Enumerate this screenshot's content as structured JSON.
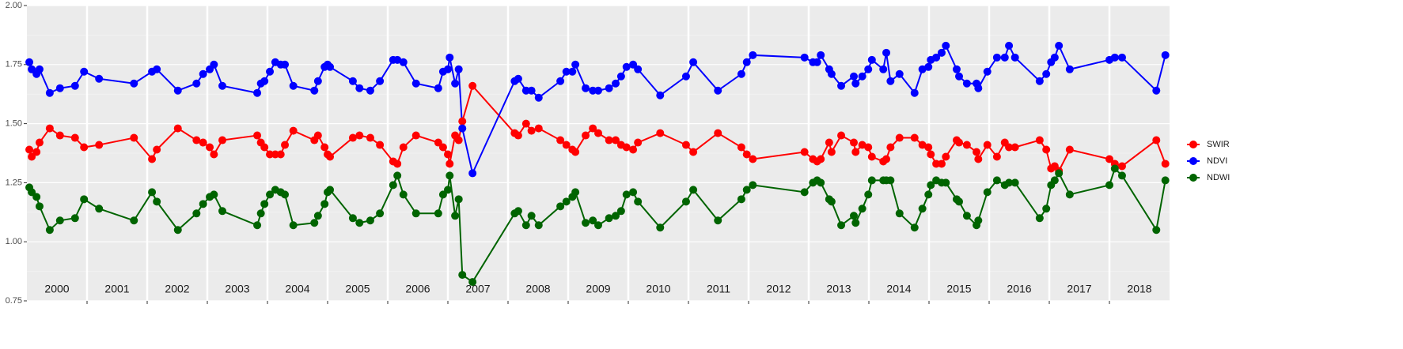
{
  "chart_data": {
    "type": "line",
    "x": [
      2000.04,
      2000.08,
      2000.16,
      2000.21,
      2000.38,
      2000.55,
      2000.8,
      2000.95,
      2001.2,
      2001.78,
      2002.08,
      2002.16,
      2002.51,
      2002.82,
      2002.93,
      2003.04,
      2003.11,
      2003.25,
      2003.83,
      2003.89,
      2003.95,
      2004.04,
      2004.13,
      2004.22,
      2004.29,
      2004.43,
      2004.78,
      2004.84,
      2004.95,
      2005.0,
      2005.04,
      2005.42,
      2005.53,
      2005.71,
      2005.87,
      2006.09,
      2006.16,
      2006.26,
      2006.47,
      2006.84,
      2006.92,
      2007.0,
      2007.03,
      2007.12,
      2007.18,
      2007.24,
      2007.41,
      2008.11,
      2008.17,
      2008.3,
      2008.39,
      2008.51,
      2008.87,
      2008.97,
      2009.07,
      2009.12,
      2009.29,
      2009.41,
      2009.5,
      2009.68,
      2009.79,
      2009.88,
      2009.97,
      2010.08,
      2010.16,
      2010.53,
      2010.96,
      2011.08,
      2011.49,
      2011.88,
      2011.97,
      2012.07,
      2012.93,
      2013.07,
      2013.14,
      2013.2,
      2013.34,
      2013.38,
      2013.54,
      2013.75,
      2013.78,
      2013.89,
      2013.99,
      2014.05,
      2014.24,
      2014.29,
      2014.36,
      2014.51,
      2014.76,
      2014.89,
      2014.99,
      2015.03,
      2015.12,
      2015.21,
      2015.28,
      2015.46,
      2015.5,
      2015.63,
      2015.79,
      2015.82,
      2015.97,
      2016.13,
      2016.26,
      2016.33,
      2016.43,
      2016.84,
      2016.95,
      2017.03,
      2017.09,
      2017.16,
      2017.34,
      2018.0,
      2018.09,
      2018.21,
      2018.78,
      2018.93
    ],
    "series": [
      {
        "name": "SWIR",
        "color": "#ff0000",
        "values": [
          1.39,
          1.36,
          1.38,
          1.42,
          1.48,
          1.45,
          1.44,
          1.4,
          1.41,
          1.44,
          1.35,
          1.39,
          1.48,
          1.43,
          1.42,
          1.4,
          1.37,
          1.43,
          1.45,
          1.42,
          1.4,
          1.37,
          1.37,
          1.37,
          1.41,
          1.47,
          1.43,
          1.45,
          1.4,
          1.37,
          1.36,
          1.44,
          1.45,
          1.44,
          1.41,
          1.34,
          1.33,
          1.4,
          1.45,
          1.42,
          1.4,
          1.37,
          1.33,
          1.45,
          1.43,
          1.51,
          1.66,
          1.46,
          1.45,
          1.5,
          1.47,
          1.48,
          1.43,
          1.41,
          1.39,
          1.38,
          1.45,
          1.48,
          1.46,
          1.43,
          1.43,
          1.41,
          1.4,
          1.39,
          1.42,
          1.46,
          1.41,
          1.38,
          1.46,
          1.4,
          1.37,
          1.35,
          1.38,
          1.35,
          1.34,
          1.35,
          1.42,
          1.38,
          1.45,
          1.42,
          1.38,
          1.41,
          1.4,
          1.36,
          1.34,
          1.35,
          1.4,
          1.44,
          1.44,
          1.41,
          1.4,
          1.37,
          1.33,
          1.33,
          1.36,
          1.43,
          1.42,
          1.41,
          1.38,
          1.35,
          1.41,
          1.36,
          1.42,
          1.4,
          1.4,
          1.43,
          1.39,
          1.31,
          1.32,
          1.3,
          1.39,
          1.35,
          1.33,
          1.32,
          1.43,
          1.33
        ]
      },
      {
        "name": "NDVI",
        "color": "#0000ff",
        "values": [
          1.76,
          1.73,
          1.71,
          1.73,
          1.63,
          1.65,
          1.66,
          1.72,
          1.69,
          1.67,
          1.72,
          1.73,
          1.64,
          1.67,
          1.71,
          1.73,
          1.75,
          1.66,
          1.63,
          1.67,
          1.68,
          1.72,
          1.76,
          1.75,
          1.75,
          1.66,
          1.64,
          1.68,
          1.74,
          1.75,
          1.74,
          1.68,
          1.65,
          1.64,
          1.68,
          1.77,
          1.77,
          1.76,
          1.67,
          1.65,
          1.72,
          1.73,
          1.78,
          1.67,
          1.73,
          1.48,
          1.29,
          1.68,
          1.69,
          1.64,
          1.64,
          1.61,
          1.68,
          1.72,
          1.72,
          1.75,
          1.65,
          1.64,
          1.64,
          1.65,
          1.67,
          1.7,
          1.74,
          1.75,
          1.73,
          1.62,
          1.7,
          1.76,
          1.64,
          1.71,
          1.76,
          1.79,
          1.78,
          1.76,
          1.76,
          1.79,
          1.73,
          1.71,
          1.66,
          1.7,
          1.67,
          1.7,
          1.73,
          1.77,
          1.73,
          1.8,
          1.68,
          1.71,
          1.63,
          1.73,
          1.74,
          1.77,
          1.78,
          1.8,
          1.83,
          1.73,
          1.7,
          1.67,
          1.67,
          1.65,
          1.72,
          1.78,
          1.78,
          1.83,
          1.78,
          1.68,
          1.71,
          1.76,
          1.78,
          1.83,
          1.73,
          1.77,
          1.78,
          1.78,
          1.64,
          1.79
        ]
      },
      {
        "name": "NDWI",
        "color": "#006400",
        "values": [
          1.23,
          1.21,
          1.19,
          1.15,
          1.05,
          1.09,
          1.1,
          1.18,
          1.14,
          1.09,
          1.21,
          1.17,
          1.05,
          1.12,
          1.16,
          1.19,
          1.2,
          1.13,
          1.07,
          1.12,
          1.16,
          1.2,
          1.22,
          1.21,
          1.2,
          1.07,
          1.08,
          1.11,
          1.16,
          1.21,
          1.22,
          1.1,
          1.08,
          1.09,
          1.12,
          1.24,
          1.28,
          1.2,
          1.12,
          1.12,
          1.2,
          1.22,
          1.28,
          1.11,
          1.18,
          0.86,
          0.83,
          1.12,
          1.13,
          1.07,
          1.11,
          1.07,
          1.15,
          1.17,
          1.19,
          1.21,
          1.08,
          1.09,
          1.07,
          1.1,
          1.11,
          1.13,
          1.2,
          1.21,
          1.17,
          1.06,
          1.17,
          1.22,
          1.09,
          1.18,
          1.22,
          1.24,
          1.21,
          1.25,
          1.26,
          1.25,
          1.18,
          1.17,
          1.07,
          1.11,
          1.08,
          1.14,
          1.2,
          1.26,
          1.26,
          1.26,
          1.26,
          1.12,
          1.06,
          1.14,
          1.2,
          1.24,
          1.26,
          1.25,
          1.25,
          1.18,
          1.17,
          1.11,
          1.07,
          1.09,
          1.21,
          1.26,
          1.24,
          1.25,
          1.25,
          1.1,
          1.14,
          1.24,
          1.26,
          1.29,
          1.2,
          1.24,
          1.31,
          1.28,
          1.05,
          1.26
        ]
      }
    ],
    "xlim": [
      2000,
      2019
    ],
    "xticks": [
      2001,
      2002,
      2003,
      2004,
      2005,
      2006,
      2007,
      2008,
      2009,
      2010,
      2011,
      2012,
      2013,
      2014,
      2015,
      2016,
      2017,
      2018
    ],
    "year_labels": [
      "2000",
      "2001",
      "2002",
      "2003",
      "2004",
      "2005",
      "2006",
      "2007",
      "2008",
      "2009",
      "2010",
      "2011",
      "2012",
      "2013",
      "2014",
      "2015",
      "2016",
      "2017",
      "2018"
    ],
    "ylim": [
      0.75,
      2.0
    ],
    "yticks": [
      {
        "value": 0.75,
        "label": "0.75"
      },
      {
        "value": 1.0,
        "label": "1.00"
      },
      {
        "value": 1.25,
        "label": "1.25"
      },
      {
        "value": 1.5,
        "label": "1.50"
      },
      {
        "value": 1.75,
        "label": "1.75"
      },
      {
        "value": 2.0,
        "label": "2.00"
      }
    ],
    "grid": true,
    "legend": "right"
  }
}
